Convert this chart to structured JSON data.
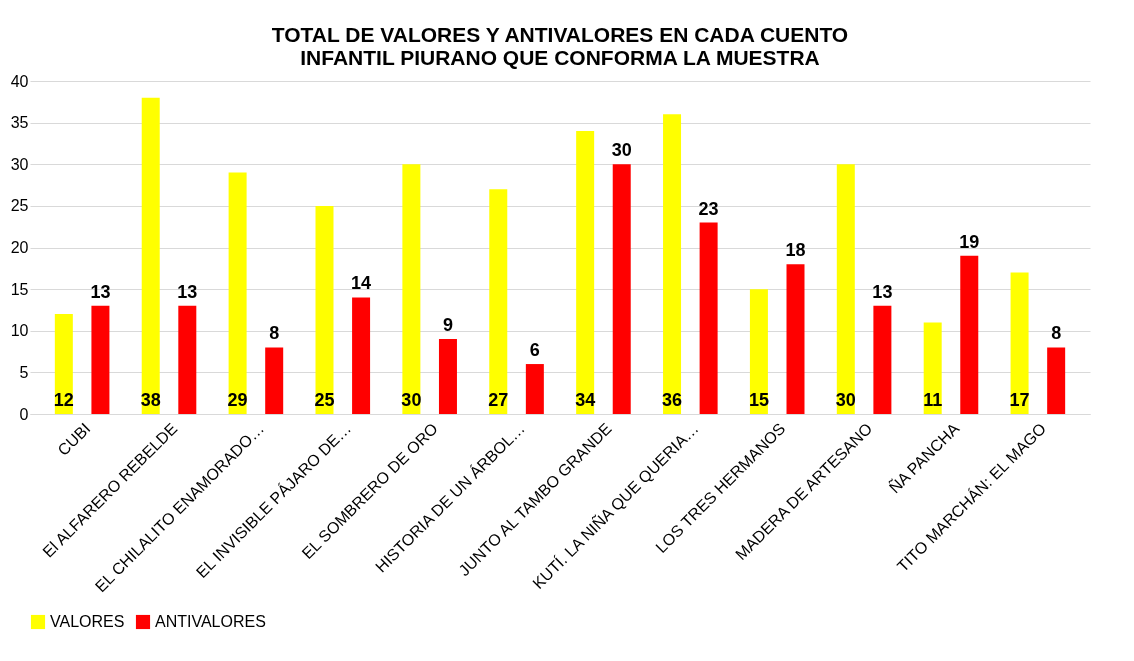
{
  "chart_data": {
    "type": "bar",
    "title": "TOTAL DE VALORES Y ANTIVALORES EN CADA CUENTO INFANTIL PIURANO QUE CONFORMA LA MUESTRA",
    "categories": [
      "CUBI",
      "El ALFARERO REBELDE",
      "EL CHILALITO ENAMORADO…",
      "EL INVISIBLE PÁJARO DE…",
      "EL SOMBRERO DE ORO",
      "HISTORIA DE UN ÁRBOL…",
      "JUNTO AL TAMBO GRANDE",
      "KUTÍ. LA NIÑA QUE QUERIA…",
      "LOS TRES HERMANOS",
      "MADERA DE ARTESANO",
      "ÑA PANCHA",
      "TITO MARCHÁN: EL MAGO"
    ],
    "series": [
      {
        "name": "VALORES",
        "color": "#ffff00",
        "values": [
          12,
          38,
          29,
          25,
          30,
          27,
          34,
          36,
          15,
          30,
          11,
          17
        ]
      },
      {
        "name": "ANTIVALORES",
        "color": "#ff0000",
        "values": [
          13,
          13,
          8,
          14,
          9,
          6,
          30,
          23,
          18,
          13,
          19,
          8
        ]
      }
    ],
    "ylim": [
      0,
      40
    ],
    "yticks": [
      0,
      5,
      10,
      15,
      20,
      25,
      30,
      35,
      40
    ],
    "grid": "y",
    "legend": "bottom",
    "data_labels": true
  }
}
